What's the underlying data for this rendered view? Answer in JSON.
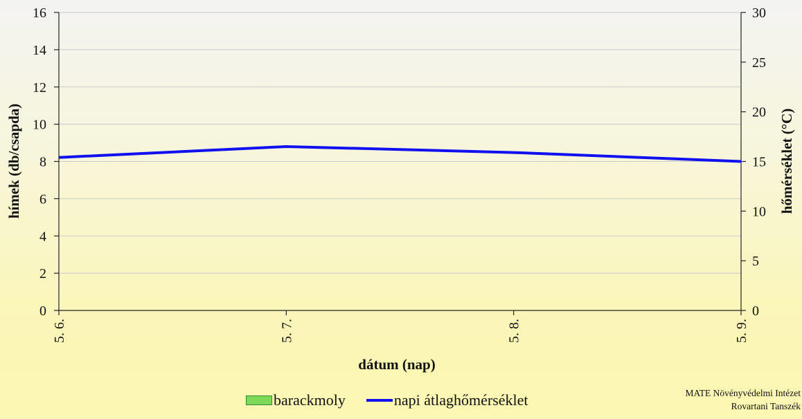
{
  "chart_data": {
    "type": "line",
    "categories": [
      "5. 6.",
      "5. 7.",
      "5. 8.",
      "5. 9."
    ],
    "series": [
      {
        "name": "barackmoly",
        "type": "bar",
        "axis": "left",
        "values": [
          0,
          0,
          0,
          0
        ]
      },
      {
        "name": "napi átlaghőmérséklet",
        "type": "line",
        "axis": "right",
        "values": [
          15.4,
          16.5,
          15.9,
          15.0
        ]
      }
    ],
    "xlabel": "dátum (nap)",
    "ylabel_left": "hímek (db/csapda)",
    "ylabel_right": "hőmérséklet (°C)",
    "ylim_left": [
      0,
      16
    ],
    "yticks_left": [
      0,
      2,
      4,
      6,
      8,
      10,
      12,
      14,
      16
    ],
    "ylim_right": [
      0,
      30
    ],
    "yticks_right": [
      0,
      5,
      10,
      15,
      20,
      25,
      30
    ],
    "grid": true,
    "legend_position": "bottom",
    "colors": {
      "bar": "#7ed957",
      "line": "#1010f0",
      "grid": "#c8c8c8"
    }
  },
  "legend": {
    "bar_label": "barackmoly",
    "line_label": "napi átlaghőmérséklet"
  },
  "credit": {
    "line1": "MATE Növényvédelmi Intézet",
    "line2": "Rovartani Tanszék"
  }
}
